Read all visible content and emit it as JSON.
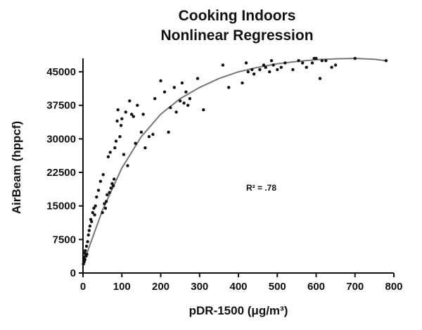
{
  "chart_data": {
    "type": "scatter",
    "title": "Cooking Indoors",
    "subtitle": "Nonlinear Regression",
    "xlabel": "pDR-1500 (μg/m³)",
    "ylabel": "AirBeam (hppcf)",
    "xlim": [
      0,
      800
    ],
    "ylim": [
      0,
      48000
    ],
    "x_ticks": [
      0,
      100,
      200,
      300,
      400,
      500,
      600,
      700,
      800
    ],
    "y_ticks": [
      0,
      7500,
      15000,
      22500,
      30000,
      37500,
      45000
    ],
    "grid": false,
    "legend": "none",
    "annotation": "R² = .78",
    "colors": {
      "points": "#111111",
      "fit_line": "#777777",
      "axes": "#111111"
    },
    "series": [
      {
        "kind": "points",
        "x": [
          1,
          2,
          3,
          4,
          5,
          6,
          7,
          8,
          9,
          10,
          12,
          14,
          16,
          18,
          20,
          22,
          25,
          28,
          30,
          32,
          35,
          40,
          45,
          50,
          52,
          55,
          58,
          60,
          62,
          65,
          68,
          70,
          72,
          75,
          78,
          80,
          82,
          85,
          88,
          90,
          95,
          98,
          100,
          105,
          110,
          115,
          120,
          125,
          130,
          135,
          140,
          150,
          155,
          160,
          170,
          180,
          185,
          200,
          210,
          220,
          225,
          235,
          240,
          250,
          255,
          260,
          265,
          270,
          275,
          295,
          310,
          360,
          375,
          410,
          420,
          425,
          435,
          440,
          455,
          465,
          470,
          480,
          485,
          490,
          500,
          510,
          520,
          540,
          555,
          565,
          575,
          590,
          595,
          600,
          610,
          615,
          625,
          640,
          650,
          700,
          780
        ],
        "y": [
          2000,
          3500,
          2500,
          4500,
          3000,
          5000,
          4000,
          3800,
          6000,
          4200,
          7000,
          8500,
          9500,
          10500,
          12000,
          11500,
          13500,
          14500,
          13000,
          15000,
          17000,
          18500,
          20500,
          13500,
          22000,
          15500,
          14500,
          16000,
          17500,
          26000,
          18000,
          27000,
          19000,
          20000,
          19500,
          21000,
          28000,
          29500,
          34000,
          36500,
          30500,
          33000,
          34500,
          26500,
          36000,
          24000,
          38500,
          35500,
          35000,
          29000,
          37500,
          31500,
          35500,
          28000,
          30500,
          31000,
          39000,
          43000,
          40500,
          31500,
          37000,
          41500,
          36000,
          38500,
          42500,
          38000,
          40500,
          37500,
          39000,
          43500,
          36500,
          46500,
          41500,
          42500,
          47000,
          45000,
          45500,
          44500,
          45500,
          46500,
          46000,
          45000,
          47500,
          46500,
          45500,
          46000,
          47000,
          45500,
          47500,
          47000,
          46000,
          47000,
          48000,
          48000,
          43500,
          47500,
          47500,
          46000,
          46500,
          48000,
          47500
        ]
      },
      {
        "kind": "fit",
        "x": [
          0,
          50,
          100,
          150,
          200,
          250,
          300,
          350,
          400,
          450,
          500,
          550,
          600,
          650,
          700,
          750,
          780
        ],
        "y": [
          2000,
          14000,
          23500,
          30500,
          35500,
          39000,
          41500,
          43500,
          45000,
          46000,
          46800,
          47300,
          47700,
          47900,
          48000,
          47800,
          47500
        ]
      }
    ]
  }
}
